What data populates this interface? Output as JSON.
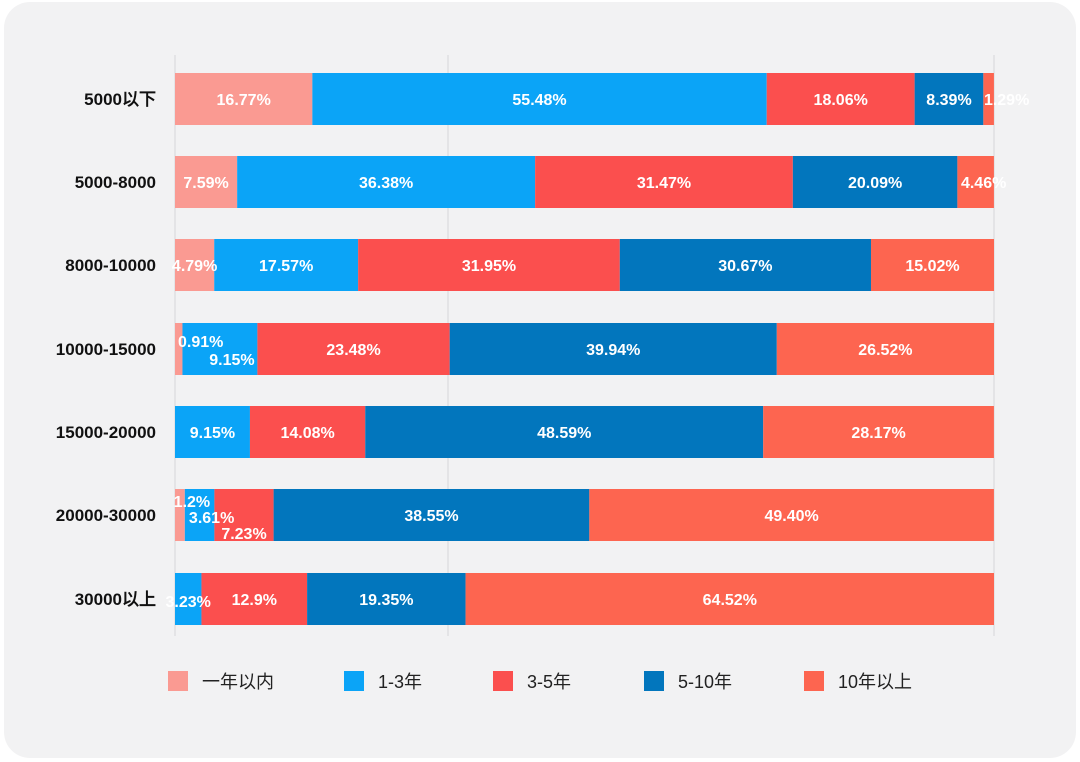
{
  "chart_data": {
    "type": "bar",
    "orientation": "horizontal",
    "stacked": true,
    "title": "",
    "xlabel": "",
    "ylabel": "",
    "xlim": [
      0,
      100
    ],
    "grid": true,
    "legend_position": "bottom",
    "categories": [
      "5000以下",
      "5000-8000",
      "8000-10000",
      "10000-15000",
      "15000-20000",
      "20000-30000",
      "30000以上"
    ],
    "series": [
      {
        "name": "一年以内",
        "color": "#fa9a92",
        "values": [
          16.77,
          7.59,
          4.79,
          0.91,
          0,
          1.2,
          0
        ],
        "labels": [
          "16.77%",
          "7.59%",
          "4.79%",
          "0.91%",
          "",
          "1.2%",
          ""
        ]
      },
      {
        "name": "1-3年",
        "color": "#0ba4f7",
        "values": [
          55.48,
          36.38,
          17.57,
          9.15,
          9.15,
          3.61,
          3.23
        ],
        "labels": [
          "55.48%",
          "36.38%",
          "17.57%",
          "9.15%",
          "9.15%",
          "3.61%",
          "3.23%"
        ]
      },
      {
        "name": "3-5年",
        "color": "#fb4f4e",
        "values": [
          18.06,
          31.47,
          31.95,
          23.48,
          14.08,
          7.23,
          12.9
        ],
        "labels": [
          "18.06%",
          "31.47%",
          "31.95%",
          "23.48%",
          "14.08%",
          "7.23%",
          "12.9%"
        ]
      },
      {
        "name": "5-10年",
        "color": "#0276bd",
        "values": [
          8.39,
          20.09,
          30.67,
          39.94,
          48.59,
          38.55,
          19.35
        ],
        "labels": [
          "8.39%",
          "20.09%",
          "30.67%",
          "39.94%",
          "48.59%",
          "38.55%",
          "19.35%"
        ]
      },
      {
        "name": "10年以上",
        "color": "#fd6550",
        "values": [
          1.29,
          4.46,
          15.02,
          26.52,
          28.17,
          49.4,
          64.52
        ],
        "labels": [
          "1.29%",
          "4.46%",
          "15.02%",
          "26.52%",
          "28.17%",
          "49.40%",
          "64.52%"
        ]
      }
    ]
  }
}
